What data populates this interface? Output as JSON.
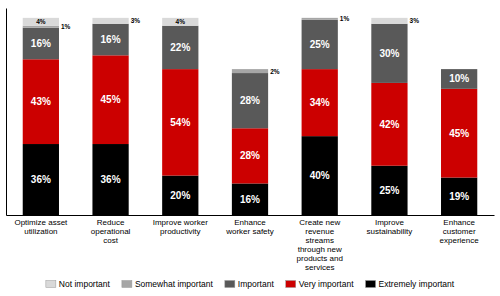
{
  "chart_data": {
    "type": "bar",
    "stacked": true,
    "data_labels": true,
    "tick_labels": "x",
    "categories": [
      "Optimize asset\nutilization",
      "Reduce\noperational\ncost",
      "Improve worker\nproductivity",
      "Enhance\nworker safety",
      "Create new\nrevenue\nstreams\nthrough new\nproducts and\nservices",
      "Improve\nsustainability",
      "Enhance\ncustomer\nexperience"
    ],
    "series": [
      {
        "name": "Extremely important",
        "color": "#000000",
        "values": [
          36,
          36,
          20,
          16,
          40,
          25,
          19
        ],
        "value_labels": [
          "36%",
          "36%",
          "20%",
          "16%",
          "40%",
          "25%",
          "19%"
        ]
      },
      {
        "name": "Very important",
        "color": "#cc0000",
        "values": [
          43,
          45,
          54,
          28,
          34,
          42,
          45
        ],
        "value_labels": [
          "43%",
          "45%",
          "54%",
          "28%",
          "34%",
          "42%",
          "45%"
        ]
      },
      {
        "name": "Important",
        "color": "#595959",
        "values": [
          16,
          16,
          22,
          28,
          25,
          30,
          10
        ],
        "value_labels": [
          "16%",
          "16%",
          "22%",
          "28%",
          "25%",
          "30%",
          "10%"
        ]
      },
      {
        "name": "Somewhat important",
        "color": "#a6a6a6",
        "values": [
          1,
          0,
          0,
          2,
          1,
          0,
          0
        ],
        "value_labels": [
          "1%",
          null,
          null,
          "2%",
          "1%",
          null,
          null
        ]
      },
      {
        "name": "Not important",
        "color": "#d9d9d9",
        "values": [
          4,
          3,
          4,
          0,
          0,
          3,
          0
        ],
        "value_labels": [
          "4%",
          "3%",
          "4%",
          null,
          null,
          "3%",
          null
        ]
      }
    ],
    "ylim": [
      0,
      105
    ]
  }
}
